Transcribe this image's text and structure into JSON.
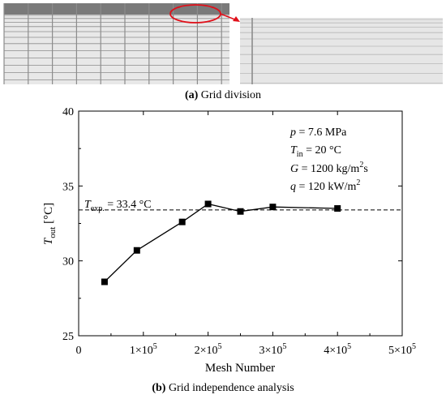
{
  "panel_a": {
    "caption_letter": "(a)",
    "caption_text": "Grid division",
    "colors": {
      "highlight": "#e0101a",
      "grid_line": "#8c8c8c",
      "fine_line": "#b8b8b8",
      "mesh_bg": "#e6e6e6",
      "dense_top": "#6f6f6f"
    }
  },
  "panel_b": {
    "caption_letter": "(b)",
    "caption_text": "Grid independence analysis",
    "params": [
      {
        "name": "p",
        "sub": "",
        "sup": "",
        "rest": " = 7.6 MPa"
      },
      {
        "name": "T",
        "sub": "in",
        "sup": "",
        "rest": " = 20 °C"
      },
      {
        "name": "G",
        "sub": "",
        "sup": "2",
        "rest_pre": " = 1200 kg/m",
        "rest_post": "s"
      },
      {
        "name": "q",
        "sub": "",
        "sup": "2",
        "rest_pre": " = 120 kW/m",
        "rest_post": ""
      }
    ],
    "reference_label": {
      "name": "T",
      "sub": "exp.",
      "rest": " = 33.4 °C"
    }
  },
  "chart_data": {
    "type": "line",
    "xlabel": "Mesh Number",
    "ylabel": {
      "main": "T",
      "sub": "out",
      "unit": " [°C]"
    },
    "xlim": [
      0,
      500000
    ],
    "ylim": [
      25,
      40
    ],
    "x_ticks": [
      {
        "value": 0,
        "mantissa": "0",
        "exp": ""
      },
      {
        "value": 100000,
        "mantissa": "1×10",
        "exp": "5"
      },
      {
        "value": 200000,
        "mantissa": "2×10",
        "exp": "5"
      },
      {
        "value": 300000,
        "mantissa": "3×10",
        "exp": "5"
      },
      {
        "value": 400000,
        "mantissa": "4×10",
        "exp": "5"
      },
      {
        "value": 500000,
        "mantissa": "5×10",
        "exp": "5"
      }
    ],
    "y_ticks": [
      25,
      30,
      35,
      40
    ],
    "grid": false,
    "series": [
      {
        "marker": "square",
        "color": "#000000",
        "x": [
          40000,
          90000,
          160000,
          200000,
          250000,
          300000,
          400000
        ],
        "y": [
          28.6,
          30.7,
          32.6,
          33.8,
          33.3,
          33.6,
          33.5
        ]
      }
    ],
    "reference_line": {
      "y": 33.4,
      "style": "dashed"
    }
  }
}
